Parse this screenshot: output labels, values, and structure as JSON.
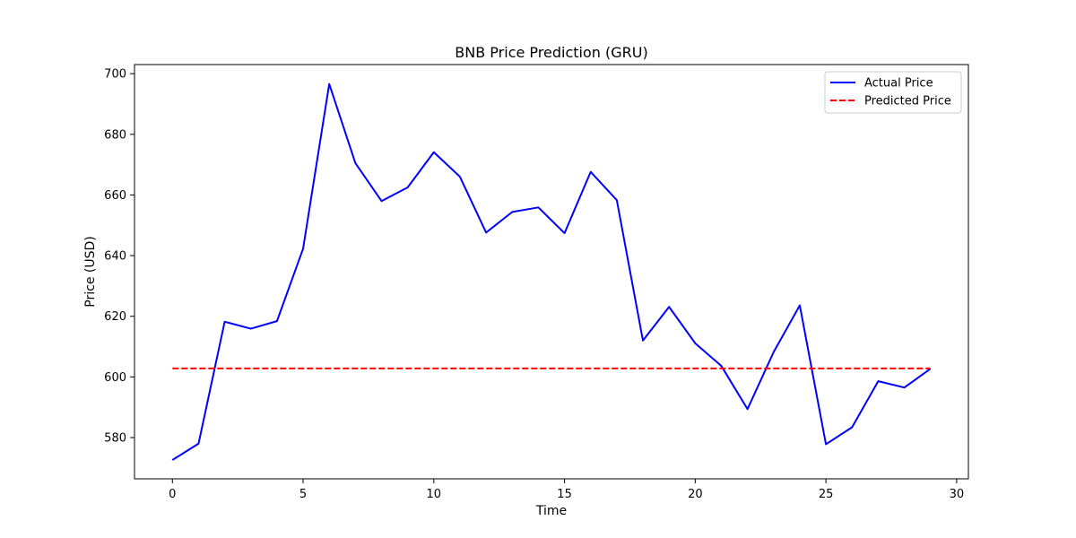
{
  "chart_data": {
    "type": "line",
    "title": "BNB Price Prediction (GRU)",
    "xlabel": "Time",
    "ylabel": "Price (USD)",
    "xlim": [
      -1.45,
      30.45
    ],
    "ylim": [
      566.4,
      703.0
    ],
    "xticks": [
      0,
      5,
      10,
      15,
      20,
      25,
      30
    ],
    "yticks": [
      580,
      600,
      620,
      640,
      660,
      680,
      700
    ],
    "grid": false,
    "legend_position": "top-right",
    "series": [
      {
        "name": "Actual Price",
        "color": "#0000ff",
        "style": "solid",
        "x": [
          0,
          1,
          2,
          3,
          4,
          5,
          6,
          7,
          8,
          9,
          10,
          11,
          12,
          13,
          14,
          15,
          16,
          17,
          18,
          19,
          20,
          21,
          22,
          23,
          24,
          25,
          26,
          27,
          28,
          29
        ],
        "y": [
          572.6,
          578.0,
          618.2,
          615.9,
          618.4,
          642.3,
          696.6,
          670.5,
          658.0,
          662.5,
          674.1,
          666.0,
          647.6,
          654.4,
          655.9,
          647.4,
          667.6,
          658.3,
          612.0,
          623.1,
          611.1,
          603.6,
          589.4,
          608.2,
          623.6,
          577.8,
          583.4,
          598.6,
          596.5,
          602.7
        ]
      },
      {
        "name": "Predicted Price",
        "color": "#ff0000",
        "style": "dashed",
        "x": [
          0,
          29
        ],
        "y": [
          602.8,
          602.8
        ]
      }
    ]
  }
}
